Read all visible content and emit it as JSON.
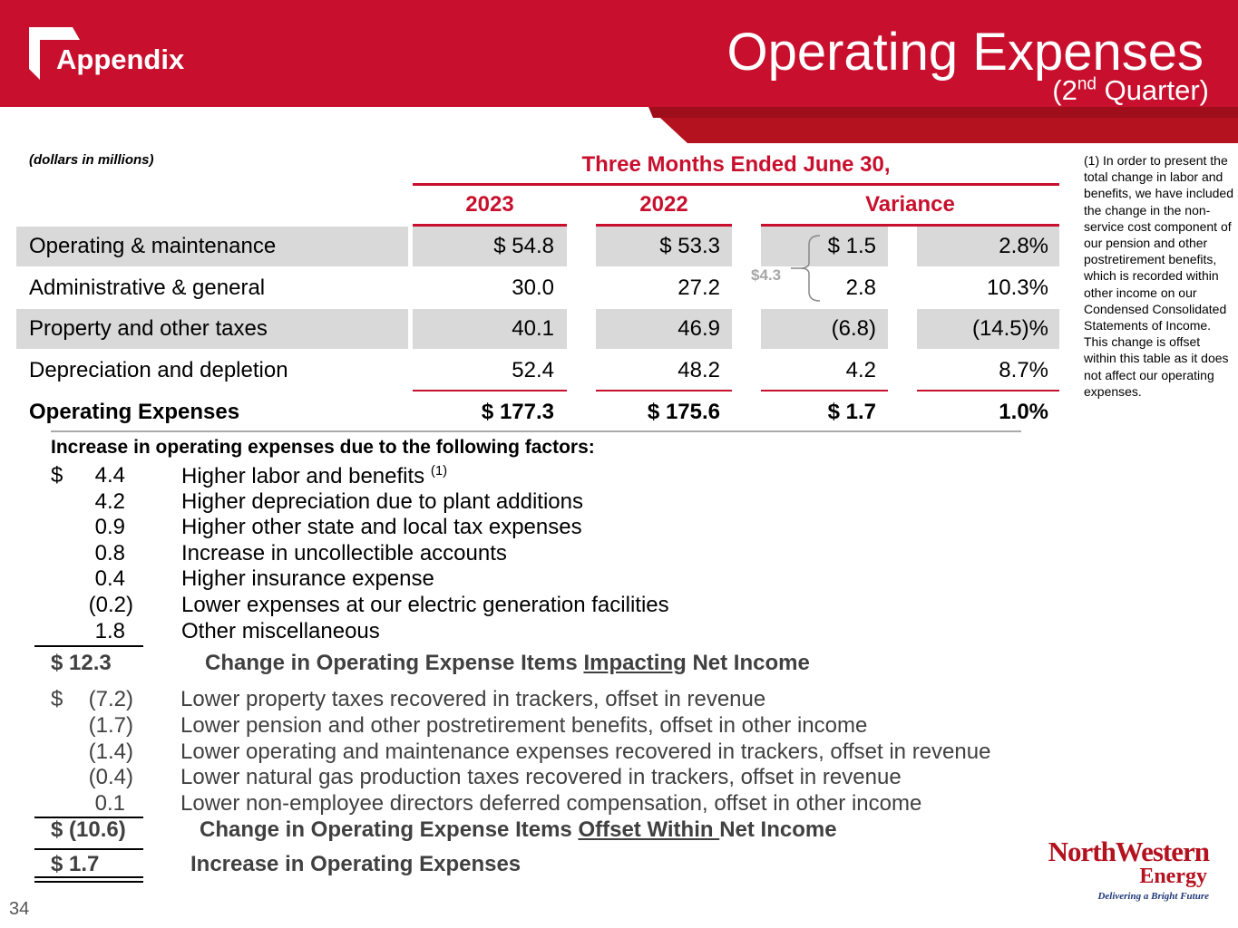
{
  "header": {
    "section_label": "Appendix",
    "title": "Operating Expenses",
    "subtitle_prefix": "(2",
    "subtitle_sup": "nd",
    "subtitle_suffix": " Quarter)"
  },
  "table": {
    "units_note": "(dollars in millions)",
    "period_header": "Three Months Ended June 30,",
    "columns": [
      "2023",
      "2022",
      "Variance"
    ],
    "rows": [
      {
        "label": "Operating & maintenance",
        "y2023": "$ 54.8",
        "y2022": "$ 53.3",
        "var_amt": "$ 1.5",
        "var_pct": "2.8%"
      },
      {
        "label": "Administrative & general",
        "y2023": "30.0",
        "y2022": "27.2",
        "var_amt": "2.8",
        "var_pct": "10.3%"
      },
      {
        "label": "Property and other taxes",
        "y2023": "40.1",
        "y2022": "46.9",
        "var_amt": "(6.8)",
        "var_pct": "(14.5)%"
      },
      {
        "label": "Depreciation and depletion",
        "y2023": "52.4",
        "y2022": "48.2",
        "var_amt": "4.2",
        "var_pct": "8.7%"
      },
      {
        "label": "Operating Expenses",
        "y2023": "$ 177.3",
        "y2022": "$ 175.6",
        "var_amt": "$ 1.7",
        "var_pct": "1.0%"
      }
    ],
    "bracket_note": "$4.3"
  },
  "footnote": "(1) In order to present the total change in labor and benefits, we have included the change in the non-service cost component of our pension and other postretirement benefits, which is recorded within other income on our Condensed Consolidated Statements of Income. This change is offset within this table as it does not affect our operating expenses.",
  "factors": {
    "title": "Increase in operating expenses due to the following factors:",
    "impacting": [
      {
        "currency": "$",
        "amount": "4.4",
        "desc": "Higher labor and benefits ",
        "note": "(1)"
      },
      {
        "currency": "",
        "amount": "4.2",
        "desc": "Higher depreciation due to plant additions",
        "note": ""
      },
      {
        "currency": "",
        "amount": "0.9",
        "desc": "Higher other state and local tax expenses",
        "note": ""
      },
      {
        "currency": "",
        "amount": "0.8",
        "desc": "Increase in uncollectible accounts",
        "note": ""
      },
      {
        "currency": "",
        "amount": "0.4",
        "desc": "Higher insurance expense",
        "note": ""
      },
      {
        "currency": "",
        "amount": "(0.2)",
        "desc": "Lower expenses at our electric generation facilities",
        "note": ""
      },
      {
        "currency": "",
        "amount": "1.8",
        "desc": "Other miscellaneous",
        "note": ""
      }
    ],
    "impacting_total": {
      "amount": "$  12.3",
      "pre": "Change in Operating Expense Items ",
      "underlined": "Impacting",
      "post": " Net Income"
    },
    "offset": [
      {
        "currency": "$",
        "amount": "(7.2)",
        "desc": "Lower property taxes recovered in trackers, offset in revenue"
      },
      {
        "currency": "",
        "amount": "(1.7)",
        "desc": "Lower pension and other postretirement benefits, offset in other income"
      },
      {
        "currency": "",
        "amount": "(1.4)",
        "desc": "Lower operating and maintenance expenses recovered in trackers, offset in revenue"
      },
      {
        "currency": "",
        "amount": "(0.4)",
        "desc": "Lower natural gas production taxes recovered in trackers, offset in revenue"
      },
      {
        "currency": "",
        "amount": "0.1",
        "desc": "Lower non-employee directors deferred compensation, offset in other income"
      }
    ],
    "offset_total": {
      "amount": "$ (10.6)",
      "pre": "Change in Operating Expense Items ",
      "underlined": "Offset Within ",
      "post": "Net Income"
    },
    "grand_total": {
      "amount": "$    1.7",
      "label": "Increase in Operating Expenses"
    }
  },
  "footer": {
    "page_number": "34",
    "logo_line1": "NorthWestern",
    "logo_line2": "Energy",
    "logo_tagline": "Delivering a Bright Future"
  },
  "colors": {
    "brand_red": "#c8102e",
    "shade_grey": "#d9d9d9"
  }
}
